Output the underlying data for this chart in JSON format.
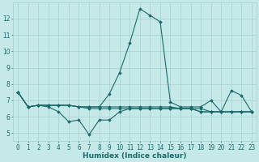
{
  "title": "",
  "xlabel": "Humidex (Indice chaleur)",
  "ylabel": "",
  "bg_color": "#c5e8e8",
  "grid_color": "#a8cfcf",
  "line_color": "#1a6b6b",
  "xlim": [
    -0.5,
    23.5
  ],
  "ylim": [
    4.5,
    13.0
  ],
  "yticks": [
    5,
    6,
    7,
    8,
    9,
    10,
    11,
    12
  ],
  "xticks": [
    0,
    1,
    2,
    3,
    4,
    5,
    6,
    7,
    8,
    9,
    10,
    11,
    12,
    13,
    14,
    15,
    16,
    17,
    18,
    19,
    20,
    21,
    22,
    23
  ],
  "series": [
    [
      7.5,
      6.6,
      6.7,
      6.6,
      6.3,
      5.7,
      5.8,
      4.9,
      5.8,
      5.8,
      6.3,
      6.5,
      6.5,
      6.5,
      6.5,
      6.5,
      6.5,
      6.5,
      6.5,
      6.3,
      6.3,
      6.3,
      6.3,
      6.3
    ],
    [
      7.5,
      6.6,
      6.7,
      6.7,
      6.7,
      6.7,
      6.6,
      6.6,
      6.6,
      7.4,
      8.7,
      10.5,
      12.6,
      12.2,
      11.8,
      6.9,
      6.6,
      6.6,
      6.6,
      7.0,
      6.3,
      7.6,
      7.3,
      6.3
    ],
    [
      7.5,
      6.6,
      6.7,
      6.7,
      6.7,
      6.7,
      6.6,
      6.5,
      6.5,
      6.5,
      6.5,
      6.5,
      6.5,
      6.5,
      6.5,
      6.5,
      6.5,
      6.5,
      6.3,
      6.3,
      6.3,
      6.3,
      6.3,
      6.3
    ],
    [
      7.5,
      6.6,
      6.7,
      6.7,
      6.7,
      6.7,
      6.6,
      6.6,
      6.6,
      6.6,
      6.6,
      6.6,
      6.6,
      6.6,
      6.6,
      6.6,
      6.5,
      6.5,
      6.3,
      6.3,
      6.3,
      6.3,
      6.3,
      6.3
    ]
  ]
}
